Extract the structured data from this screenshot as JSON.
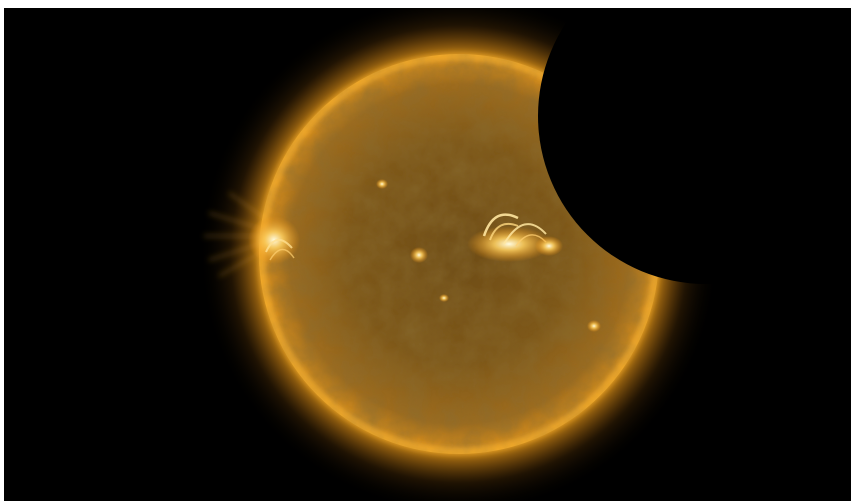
{
  "image": {
    "subject": "sun-partially-eclipsed-by-moon",
    "colors": {
      "background": "#000000",
      "corona": "#ffb020",
      "disk_center": "#7a5418",
      "disk_mid": "#9a6a20",
      "disk_limb": "#d8901c",
      "active_region": "#fff0b0",
      "moon": "#000000"
    }
  }
}
